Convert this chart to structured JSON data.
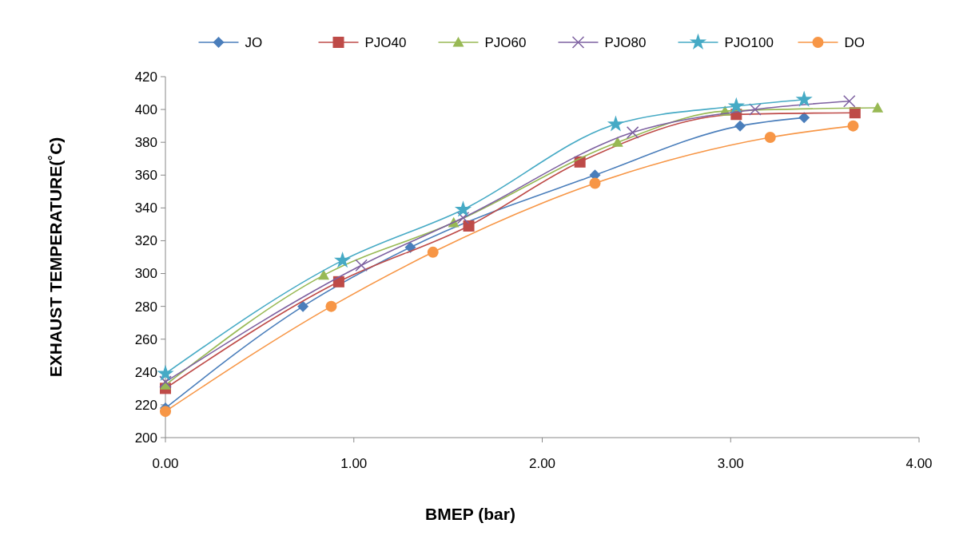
{
  "chart_data": {
    "type": "line",
    "xlabel": "BMEP (bar)",
    "ylabel": "EXHAUST TEMPERATURE(˚C)",
    "xlim": [
      0,
      4
    ],
    "xticks": [
      {
        "value": 0,
        "label": "0.00"
      },
      {
        "value": 1,
        "label": "1.00"
      },
      {
        "value": 2,
        "label": "2.00"
      },
      {
        "value": 3,
        "label": "3.00"
      },
      {
        "value": 4,
        "label": "4.00"
      }
    ],
    "ylim": [
      200,
      420
    ],
    "yticks": [
      200,
      220,
      240,
      260,
      280,
      300,
      320,
      340,
      360,
      380,
      400,
      420
    ],
    "grid": false,
    "legend": "top",
    "series": [
      {
        "name": "JO",
        "color": "#4a7ebb",
        "marker": "diamond",
        "x": [
          0,
          0.73,
          1.3,
          2.28,
          3.05,
          3.39
        ],
        "values": [
          218,
          280,
          316,
          360,
          390,
          395
        ]
      },
      {
        "name": "PJO40",
        "color": "#be4b48",
        "marker": "square",
        "x": [
          0,
          0.92,
          1.61,
          2.2,
          3.03,
          3.66
        ],
        "values": [
          230,
          295,
          329,
          368,
          397,
          398
        ]
      },
      {
        "name": "PJO60",
        "color": "#98b954",
        "marker": "triangle",
        "x": [
          0,
          0.84,
          1.53,
          2.4,
          2.97,
          3.78
        ],
        "values": [
          232,
          299,
          331,
          380,
          399,
          401
        ]
      },
      {
        "name": "PJO80",
        "color": "#7d60a0",
        "marker": "cross",
        "x": [
          0,
          1.04,
          1.58,
          2.48,
          3.13,
          3.63
        ],
        "values": [
          234,
          305,
          334,
          386,
          400,
          405
        ]
      },
      {
        "name": "PJO100",
        "color": "#46aac5",
        "marker": "star",
        "x": [
          0,
          0.94,
          1.58,
          2.39,
          3.03,
          3.39
        ],
        "values": [
          239,
          308,
          339,
          391,
          402,
          406
        ]
      },
      {
        "name": "DO",
        "color": "#f79646",
        "marker": "circle",
        "x": [
          0,
          0.88,
          1.42,
          2.28,
          3.21,
          3.65
        ],
        "values": [
          216,
          280,
          313,
          355,
          383,
          390
        ]
      }
    ]
  }
}
